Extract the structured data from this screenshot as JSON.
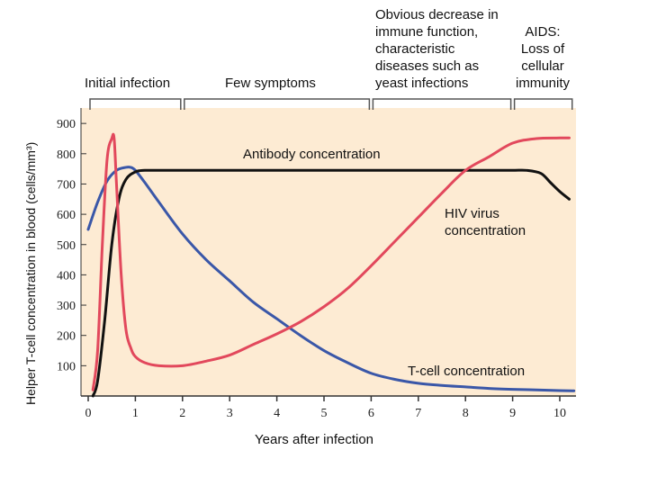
{
  "chart_data": {
    "type": "line",
    "title": "",
    "xlabel": "Years after infection",
    "ylabel": "Helper T-cell concentration in blood (cells/mm³)",
    "xlim": [
      0,
      10.3
    ],
    "ylim": [
      0,
      950
    ],
    "xticks": [
      "0",
      "1",
      "2",
      "3",
      "4",
      "5",
      "6",
      "7",
      "8",
      "9",
      "10"
    ],
    "yticks": [
      "100",
      "200",
      "300",
      "400",
      "500",
      "600",
      "700",
      "800",
      "900"
    ],
    "grid": false,
    "colors": {
      "background": "#fdebd3",
      "tcell": "#3a57a8",
      "antibody": "#111111",
      "hiv": "#e2485c"
    },
    "stages": [
      {
        "label": "Initial infection",
        "x_start": 0,
        "x_end": 2
      },
      {
        "label": "Few symptoms",
        "x_start": 2,
        "x_end": 6
      },
      {
        "label": "Obvious decrease in\nimmune function,\ncharacteristic\ndiseases such as\nyeast infections",
        "x_start": 6,
        "x_end": 9
      },
      {
        "label": "AIDS:\nLoss of\ncellular\nimmunity",
        "x_start": 9,
        "x_end": 10.3
      }
    ],
    "series": [
      {
        "name": "T-cell concentration",
        "x": [
          0,
          0.2,
          0.4,
          0.6,
          0.8,
          0.9,
          1.0,
          1.2,
          1.5,
          2.0,
          2.5,
          3.0,
          3.5,
          4.0,
          4.5,
          5.0,
          5.5,
          6.0,
          6.5,
          7.0,
          7.5,
          8.0,
          8.5,
          9.0,
          9.5,
          10.0,
          10.3
        ],
        "y": [
          550,
          640,
          710,
          745,
          755,
          755,
          745,
          705,
          640,
          535,
          450,
          380,
          310,
          255,
          200,
          150,
          110,
          75,
          55,
          42,
          35,
          30,
          25,
          22,
          20,
          18,
          17
        ]
      },
      {
        "name": "Antibody concentration",
        "x": [
          0.1,
          0.2,
          0.35,
          0.5,
          0.65,
          0.8,
          1.0,
          1.2,
          1.5,
          2.0,
          3.0,
          4.0,
          5.0,
          6.0,
          7.0,
          8.0,
          8.5,
          9.0,
          9.3,
          9.6,
          9.8,
          10.0,
          10.2
        ],
        "y": [
          0,
          50,
          250,
          500,
          650,
          715,
          740,
          745,
          745,
          745,
          745,
          745,
          745,
          745,
          745,
          745,
          745,
          745,
          745,
          735,
          705,
          675,
          650
        ]
      },
      {
        "name": "HIV virus concentration",
        "x": [
          0.1,
          0.2,
          0.3,
          0.4,
          0.5,
          0.55,
          0.6,
          0.7,
          0.8,
          0.9,
          1.0,
          1.2,
          1.5,
          2.0,
          2.5,
          3.0,
          3.5,
          4.0,
          4.5,
          5.0,
          5.5,
          6.0,
          6.5,
          7.0,
          7.5,
          8.0,
          8.5,
          9.0,
          9.5,
          10.0,
          10.2
        ],
        "y": [
          20,
          150,
          500,
          780,
          850,
          850,
          700,
          400,
          220,
          160,
          130,
          110,
          100,
          100,
          115,
          135,
          170,
          205,
          245,
          295,
          355,
          430,
          510,
          590,
          670,
          745,
          790,
          835,
          850,
          852,
          852
        ]
      }
    ]
  }
}
